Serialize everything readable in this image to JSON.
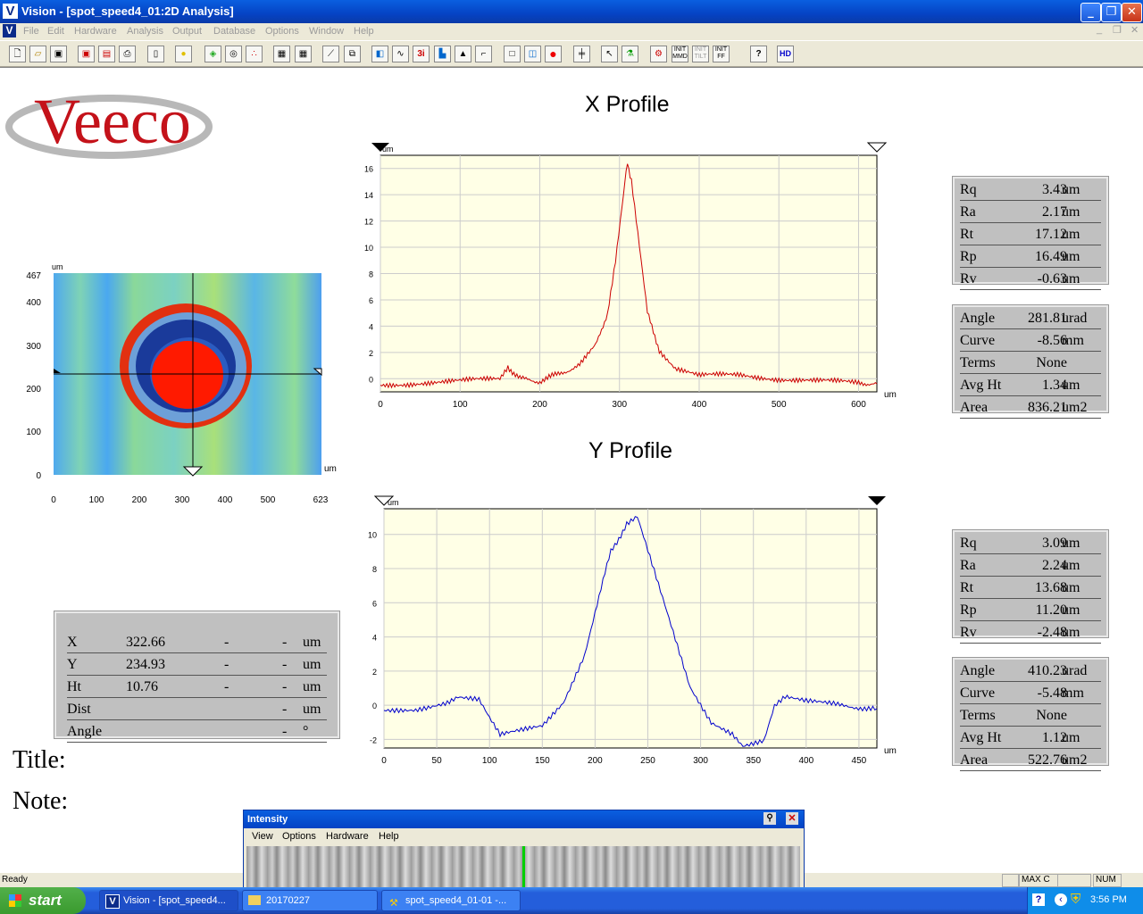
{
  "titlebar": {
    "app_icon": "V",
    "title": "Vision - [spot_speed4_01:2D Analysis]"
  },
  "menubar": {
    "icon": "V",
    "items": [
      "File",
      "Edit",
      "Hardware",
      "Analysis",
      "Output",
      "Database",
      "Options",
      "Window",
      "Help"
    ]
  },
  "toolbar": {
    "icons": [
      "new-file",
      "open-folder",
      "save",
      "save-red",
      "save-disk",
      "print",
      "page",
      "light-bulb",
      "color-map",
      "contour",
      "dots",
      "table-a",
      "table-b",
      "ruler",
      "copy",
      "color-3d",
      "profile-chart",
      "3d-i",
      "histogram",
      "spike",
      "curve",
      "box-empty",
      "box-chart",
      "record-red",
      "bracket",
      "cursor",
      "flask",
      "gear-init",
      "init-mmd",
      "init-tilt",
      "init-ff",
      "help",
      "hd"
    ],
    "labels": {
      "init_mmd": "INIT MMD",
      "init_tilt": "INIT TILT",
      "init_ff": "INIT FF",
      "hd": "HD",
      "help": "?"
    }
  },
  "logo": {
    "text": "Veeco"
  },
  "map": {
    "unit_y": "um",
    "unit_x": "um",
    "y_ticks": [
      "467",
      "400",
      "300",
      "200",
      "100",
      "0"
    ],
    "x_ticks": [
      "0",
      "100",
      "200",
      "300",
      "400",
      "500",
      "623"
    ]
  },
  "x_profile": {
    "title": "X Profile",
    "unit_y": "um",
    "unit_x": "um"
  },
  "y_profile": {
    "title": "Y Profile",
    "unit_y": "um",
    "unit_x": "um"
  },
  "x_stats": [
    {
      "label": "Rq",
      "value": "3.43",
      "unit": "um"
    },
    {
      "label": "Ra",
      "value": "2.17",
      "unit": "um"
    },
    {
      "label": "Rt",
      "value": "17.12",
      "unit": "um"
    },
    {
      "label": "Rp",
      "value": "16.49",
      "unit": "um"
    },
    {
      "label": "Rv",
      "value": "-0.63",
      "unit": "um"
    }
  ],
  "x_stats2": [
    {
      "label": "Angle",
      "value": "281.81",
      "unit": "urad"
    },
    {
      "label": "Curve",
      "value": "-8.56",
      "unit": "mm"
    },
    {
      "label": "Terms",
      "value": "None",
      "unit": ""
    },
    {
      "label": "Avg Ht",
      "value": "1.34",
      "unit": "um"
    },
    {
      "label": "Area",
      "value": "836.21",
      "unit": "um2"
    }
  ],
  "y_stats": [
    {
      "label": "Rq",
      "value": "3.09",
      "unit": "um"
    },
    {
      "label": "Ra",
      "value": "2.24",
      "unit": "um"
    },
    {
      "label": "Rt",
      "value": "13.68",
      "unit": "um"
    },
    {
      "label": "Rp",
      "value": "11.20",
      "unit": "um"
    },
    {
      "label": "Rv",
      "value": "-2.48",
      "unit": "um"
    }
  ],
  "y_stats2": [
    {
      "label": "Angle",
      "value": "410.23",
      "unit": "urad"
    },
    {
      "label": "Curve",
      "value": "-5.48",
      "unit": "mm"
    },
    {
      "label": "Terms",
      "value": "None",
      "unit": ""
    },
    {
      "label": "Avg Ht",
      "value": "1.12",
      "unit": "um"
    },
    {
      "label": "Area",
      "value": "522.76",
      "unit": "um2"
    }
  ],
  "cursor_box": [
    {
      "label": "X",
      "value": "322.66",
      "d1": "-",
      "d2": "-",
      "unit": "um"
    },
    {
      "label": "Y",
      "value": "234.93",
      "d1": "-",
      "d2": "-",
      "unit": "um"
    },
    {
      "label": "Ht",
      "value": "10.76",
      "d1": "-",
      "d2": "-",
      "unit": "um"
    },
    {
      "label": "Dist",
      "value": "",
      "d1": "",
      "d2": "-",
      "unit": "um"
    },
    {
      "label": "Angle",
      "value": "",
      "d1": "",
      "d2": "-",
      "unit": "°"
    }
  ],
  "title_label": "Title:",
  "note_label": "Note:",
  "status": {
    "ready": "Ready",
    "max": "MAX C",
    "num": "NUM"
  },
  "intensity": {
    "title": "Intensity",
    "menu": [
      "View",
      "Options",
      "Hardware",
      "Help"
    ]
  },
  "taskbar": {
    "start": "start",
    "tasks": [
      "Vision - [spot_speed4...",
      "20170227",
      "spot_speed4_01-01 -..."
    ],
    "clock": "3:56 PM"
  },
  "chart_data": [
    {
      "type": "line",
      "title": "X Profile",
      "xlabel": "um",
      "ylabel": "um",
      "xlim": [
        0,
        623
      ],
      "ylim": [
        -1,
        17
      ],
      "x_ticks": [
        0,
        100,
        200,
        300,
        400,
        500,
        600
      ],
      "y_ticks": [
        0,
        2,
        4,
        6,
        8,
        10,
        12,
        14,
        16
      ],
      "series": [
        {
          "color": "#cc0000",
          "x": [
            0,
            50,
            100,
            150,
            160,
            175,
            200,
            225,
            250,
            270,
            285,
            295,
            305,
            310,
            315,
            325,
            335,
            350,
            370,
            400,
            450,
            500,
            550,
            600,
            623
          ],
          "y": [
            -0.5,
            -0.3,
            -0.2,
            0,
            0.9,
            0,
            -0.2,
            0.4,
            1,
            2.5,
            5,
            9,
            14,
            16.5,
            15,
            10,
            5,
            2.2,
            0.8,
            0.2,
            0.3,
            0,
            -0.2,
            -0.3,
            -0.4
          ]
        }
      ]
    },
    {
      "type": "line",
      "title": "Y Profile",
      "xlabel": "um",
      "ylabel": "um",
      "xlim": [
        0,
        467
      ],
      "ylim": [
        -2.5,
        11.5
      ],
      "x_ticks": [
        0,
        50,
        100,
        150,
        200,
        250,
        300,
        350,
        400,
        450
      ],
      "y_ticks": [
        -2,
        0,
        2,
        4,
        6,
        8,
        10
      ],
      "series": [
        {
          "color": "#0000cc",
          "x": [
            0,
            30,
            60,
            70,
            90,
            100,
            110,
            130,
            150,
            170,
            190,
            200,
            215,
            230,
            240,
            250,
            270,
            290,
            310,
            330,
            340,
            360,
            370,
            380,
            400,
            430,
            467
          ],
          "y": [
            -0.3,
            -0.2,
            0.2,
            0.5,
            0.3,
            -0.8,
            -1.8,
            -1.5,
            -1.2,
            0.2,
            3,
            5.5,
            9,
            10.6,
            11,
            9,
            5,
            1,
            -1,
            -1.6,
            -2.3,
            -2,
            0,
            0.5,
            0.2,
            0,
            -0.2
          ]
        }
      ]
    }
  ]
}
